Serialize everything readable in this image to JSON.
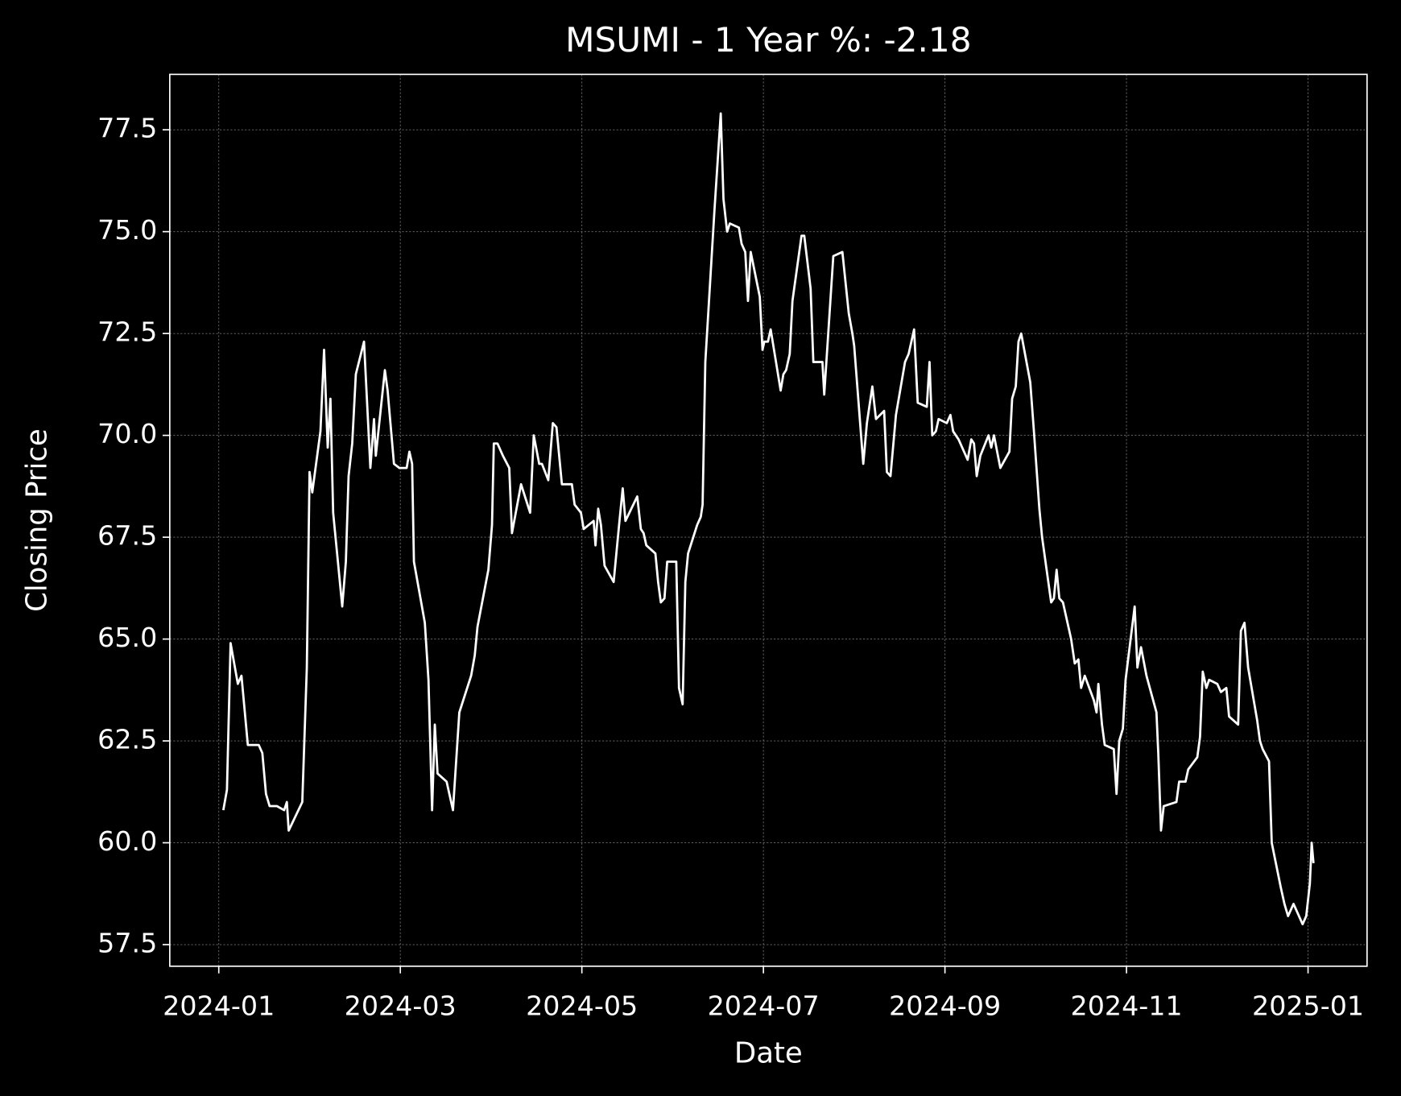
{
  "chart_data": {
    "type": "line",
    "title": "MSUMI - 1 Year %: -2.18",
    "xlabel": "Date",
    "ylabel": "Closing Price",
    "color": "#ffffff",
    "grid": true,
    "xlim": [
      -0.54,
      12.65
    ],
    "ylim": [
      56.97,
      78.86
    ],
    "xticks": [
      {
        "value": 0,
        "label": "2024-01"
      },
      {
        "value": 2,
        "label": "2024-03"
      },
      {
        "value": 4,
        "label": "2024-05"
      },
      {
        "value": 6,
        "label": "2024-07"
      },
      {
        "value": 8,
        "label": "2024-09"
      },
      {
        "value": 10,
        "label": "2024-11"
      },
      {
        "value": 12,
        "label": "2025-01"
      }
    ],
    "yticks": [
      57.5,
      {
        "value": 60,
        "label": "60.0"
      },
      62.5,
      {
        "value": 65,
        "label": "65.0"
      },
      67.5,
      {
        "value": 70,
        "label": "70.0"
      },
      72.5,
      {
        "value": 75,
        "label": "75.0"
      },
      77.5
    ],
    "x": [
      0.05,
      0.09,
      0.13,
      0.21,
      0.25,
      0.32,
      0.44,
      0.48,
      0.52,
      0.56,
      0.64,
      0.72,
      0.75,
      0.77,
      0.92,
      0.97,
      1.0,
      1.03,
      1.12,
      1.16,
      1.2,
      1.23,
      1.26,
      1.36,
      1.4,
      1.43,
      1.47,
      1.51,
      1.6,
      1.67,
      1.71,
      1.73,
      1.83,
      1.86,
      1.93,
      1.99,
      2.07,
      2.1,
      2.13,
      2.15,
      2.27,
      2.31,
      2.35,
      2.38,
      2.41,
      2.51,
      2.58,
      2.65,
      2.78,
      2.82,
      2.85,
      2.97,
      3.01,
      3.03,
      3.07,
      3.13,
      3.2,
      3.23,
      3.33,
      3.43,
      3.47,
      3.53,
      3.56,
      3.63,
      3.68,
      3.72,
      3.78,
      3.89,
      3.92,
      3.99,
      4.02,
      4.13,
      4.15,
      4.18,
      4.21,
      4.25,
      4.35,
      4.41,
      4.45,
      4.48,
      4.61,
      4.65,
      4.68,
      4.71,
      4.81,
      4.84,
      4.87,
      4.91,
      4.94,
      5.04,
      5.07,
      5.11,
      5.14,
      5.17,
      5.27,
      5.31,
      5.33,
      5.36,
      5.46,
      5.53,
      5.56,
      5.6,
      5.63,
      5.73,
      5.76,
      5.8,
      5.83,
      5.86,
      5.96,
      5.99,
      6.01,
      6.05,
      6.08,
      6.19,
      6.22,
      6.25,
      6.29,
      6.32,
      6.42,
      6.45,
      6.52,
      6.55,
      6.65,
      6.67,
      6.77,
      6.87,
      6.94,
      6.98,
      7.0,
      7.1,
      7.14,
      7.2,
      7.24,
      7.33,
      7.36,
      7.4,
      7.46,
      7.56,
      7.6,
      7.66,
      7.7,
      7.8,
      7.83,
      7.86,
      7.9,
      7.93,
      8.02,
      8.06,
      8.09,
      8.15,
      8.25,
      8.29,
      8.32,
      8.35,
      8.39,
      8.48,
      8.51,
      8.54,
      8.61,
      8.71,
      8.74,
      8.78,
      8.81,
      8.84,
      8.94,
      8.98,
      9.04,
      9.07,
      9.17,
      9.2,
      9.23,
      9.26,
      9.3,
      9.39,
      9.43,
      9.47,
      9.5,
      9.54,
      9.64,
      9.67,
      9.69,
      9.73,
      9.76,
      9.86,
      9.89,
      9.92,
      9.96,
      9.99,
      10.09,
      10.12,
      10.16,
      10.22,
      10.33,
      10.35,
      10.38,
      10.41,
      10.55,
      10.58,
      10.65,
      10.68,
      10.78,
      10.81,
      10.84,
      10.88,
      10.91,
      11.0,
      11.04,
      11.1,
      11.13,
      11.23,
      11.26,
      11.3,
      11.34,
      11.44,
      11.47,
      11.5,
      11.57,
      11.6,
      11.7,
      11.74,
      11.78,
      11.84,
      11.9,
      11.94,
      11.98,
      12.02,
      12.04,
      12.06
    ],
    "values": [
      60.8,
      61.3,
      64.9,
      63.9,
      64.1,
      62.4,
      62.4,
      62.2,
      61.2,
      60.9,
      60.9,
      60.8,
      61.0,
      60.3,
      61.0,
      64.3,
      69.1,
      68.6,
      70.1,
      72.1,
      69.7,
      70.9,
      68.1,
      65.8,
      66.9,
      69.0,
      69.8,
      71.5,
      72.3,
      69.2,
      70.4,
      69.5,
      71.6,
      71.1,
      69.3,
      69.2,
      69.2,
      69.6,
      69.3,
      66.9,
      65.4,
      64.0,
      60.8,
      62.9,
      61.7,
      61.5,
      60.8,
      63.2,
      64.1,
      64.6,
      65.3,
      66.7,
      67.8,
      69.8,
      69.8,
      69.5,
      69.2,
      67.6,
      68.8,
      68.1,
      70.0,
      69.3,
      69.3,
      68.9,
      70.3,
      70.2,
      68.8,
      68.8,
      68.3,
      68.1,
      67.7,
      67.9,
      67.3,
      68.2,
      67.8,
      66.8,
      66.4,
      67.8,
      68.7,
      67.9,
      68.5,
      67.7,
      67.6,
      67.3,
      67.1,
      66.4,
      65.9,
      66.0,
      66.9,
      66.9,
      63.8,
      63.4,
      66.4,
      67.1,
      67.8,
      68.0,
      68.3,
      71.8,
      75.5,
      77.9,
      75.8,
      75.0,
      75.2,
      75.1,
      74.7,
      74.5,
      73.3,
      74.5,
      73.4,
      72.1,
      72.3,
      72.3,
      72.6,
      71.1,
      71.5,
      71.6,
      72.0,
      73.3,
      74.9,
      74.9,
      73.6,
      71.8,
      71.8,
      71.0,
      74.4,
      74.5,
      73.0,
      72.5,
      72.2,
      69.3,
      70.3,
      71.2,
      70.4,
      70.6,
      69.1,
      69.0,
      70.5,
      71.8,
      72.0,
      72.6,
      70.8,
      70.7,
      71.8,
      70.0,
      70.1,
      70.4,
      70.3,
      70.5,
      70.1,
      69.9,
      69.4,
      69.9,
      69.8,
      69.0,
      69.5,
      70.0,
      69.7,
      70.0,
      69.2,
      69.6,
      70.9,
      71.2,
      72.3,
      72.5,
      71.3,
      70.1,
      68.2,
      67.5,
      65.9,
      66.0,
      66.7,
      66.0,
      65.9,
      65.0,
      64.4,
      64.5,
      63.8,
      64.1,
      63.5,
      63.2,
      63.9,
      62.9,
      62.4,
      62.3,
      61.2,
      62.5,
      62.8,
      64.0,
      65.8,
      64.3,
      64.8,
      64.1,
      63.2,
      62.2,
      60.3,
      60.9,
      61.0,
      61.5,
      61.5,
      61.8,
      62.1,
      62.6,
      64.2,
      63.8,
      64.0,
      63.9,
      63.7,
      63.8,
      63.1,
      62.9,
      65.2,
      65.4,
      64.3,
      63.0,
      62.5,
      62.3,
      62.0,
      60.0,
      58.9,
      58.5,
      58.2,
      58.5,
      58.2,
      58.0,
      58.2,
      59.0,
      60.0,
      59.5
    ]
  }
}
